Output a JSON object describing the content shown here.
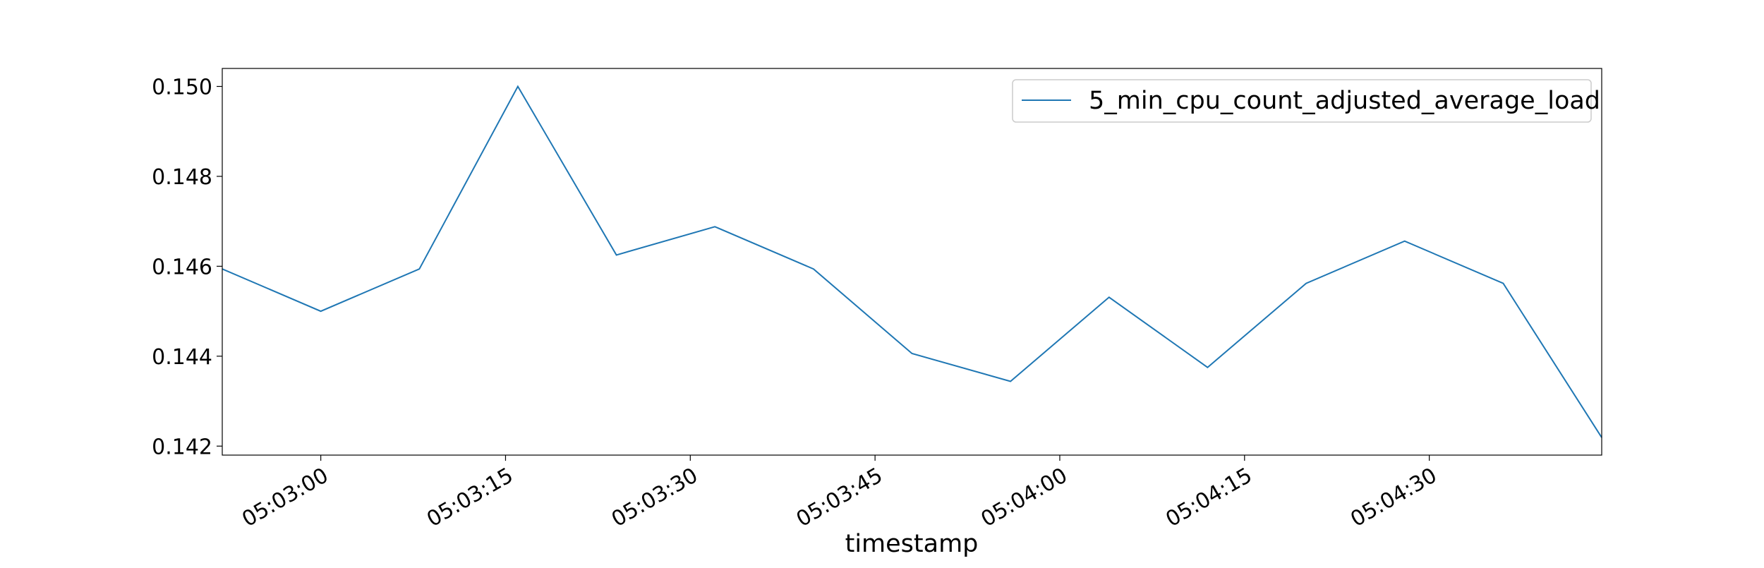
{
  "chart_data": {
    "type": "line",
    "title": "",
    "xlabel": "timestamp",
    "ylabel": "",
    "x": [
      "05:02:52",
      "05:03:00",
      "05:03:08",
      "05:03:16",
      "05:03:24",
      "05:03:32",
      "05:03:40",
      "05:03:48",
      "05:03:56",
      "05:04:04",
      "05:04:12",
      "05:04:20",
      "05:04:28",
      "05:04:36",
      "05:04:44"
    ],
    "x_ticks": [
      "05:03:00",
      "05:03:15",
      "05:03:30",
      "05:03:45",
      "05:04:00",
      "05:04:15",
      "05:04:30"
    ],
    "xlim": [
      "05:02:52",
      "05:04:44"
    ],
    "ylim": [
      0.1418,
      0.1504
    ],
    "y_ticks": [
      "0.142",
      "0.144",
      "0.146",
      "0.148",
      "0.150"
    ],
    "series": [
      {
        "name": "5_min_cpu_count_adjusted_average_load",
        "color": "#1f77b4",
        "values": [
          0.14594,
          0.145,
          0.14594,
          0.15,
          0.14625,
          0.14688,
          0.14594,
          0.14406,
          0.14344,
          0.14531,
          0.14375,
          0.14562,
          0.14656,
          0.14562,
          0.14219
        ]
      }
    ],
    "legend": {
      "placement": "top-right"
    },
    "grid": false
  }
}
